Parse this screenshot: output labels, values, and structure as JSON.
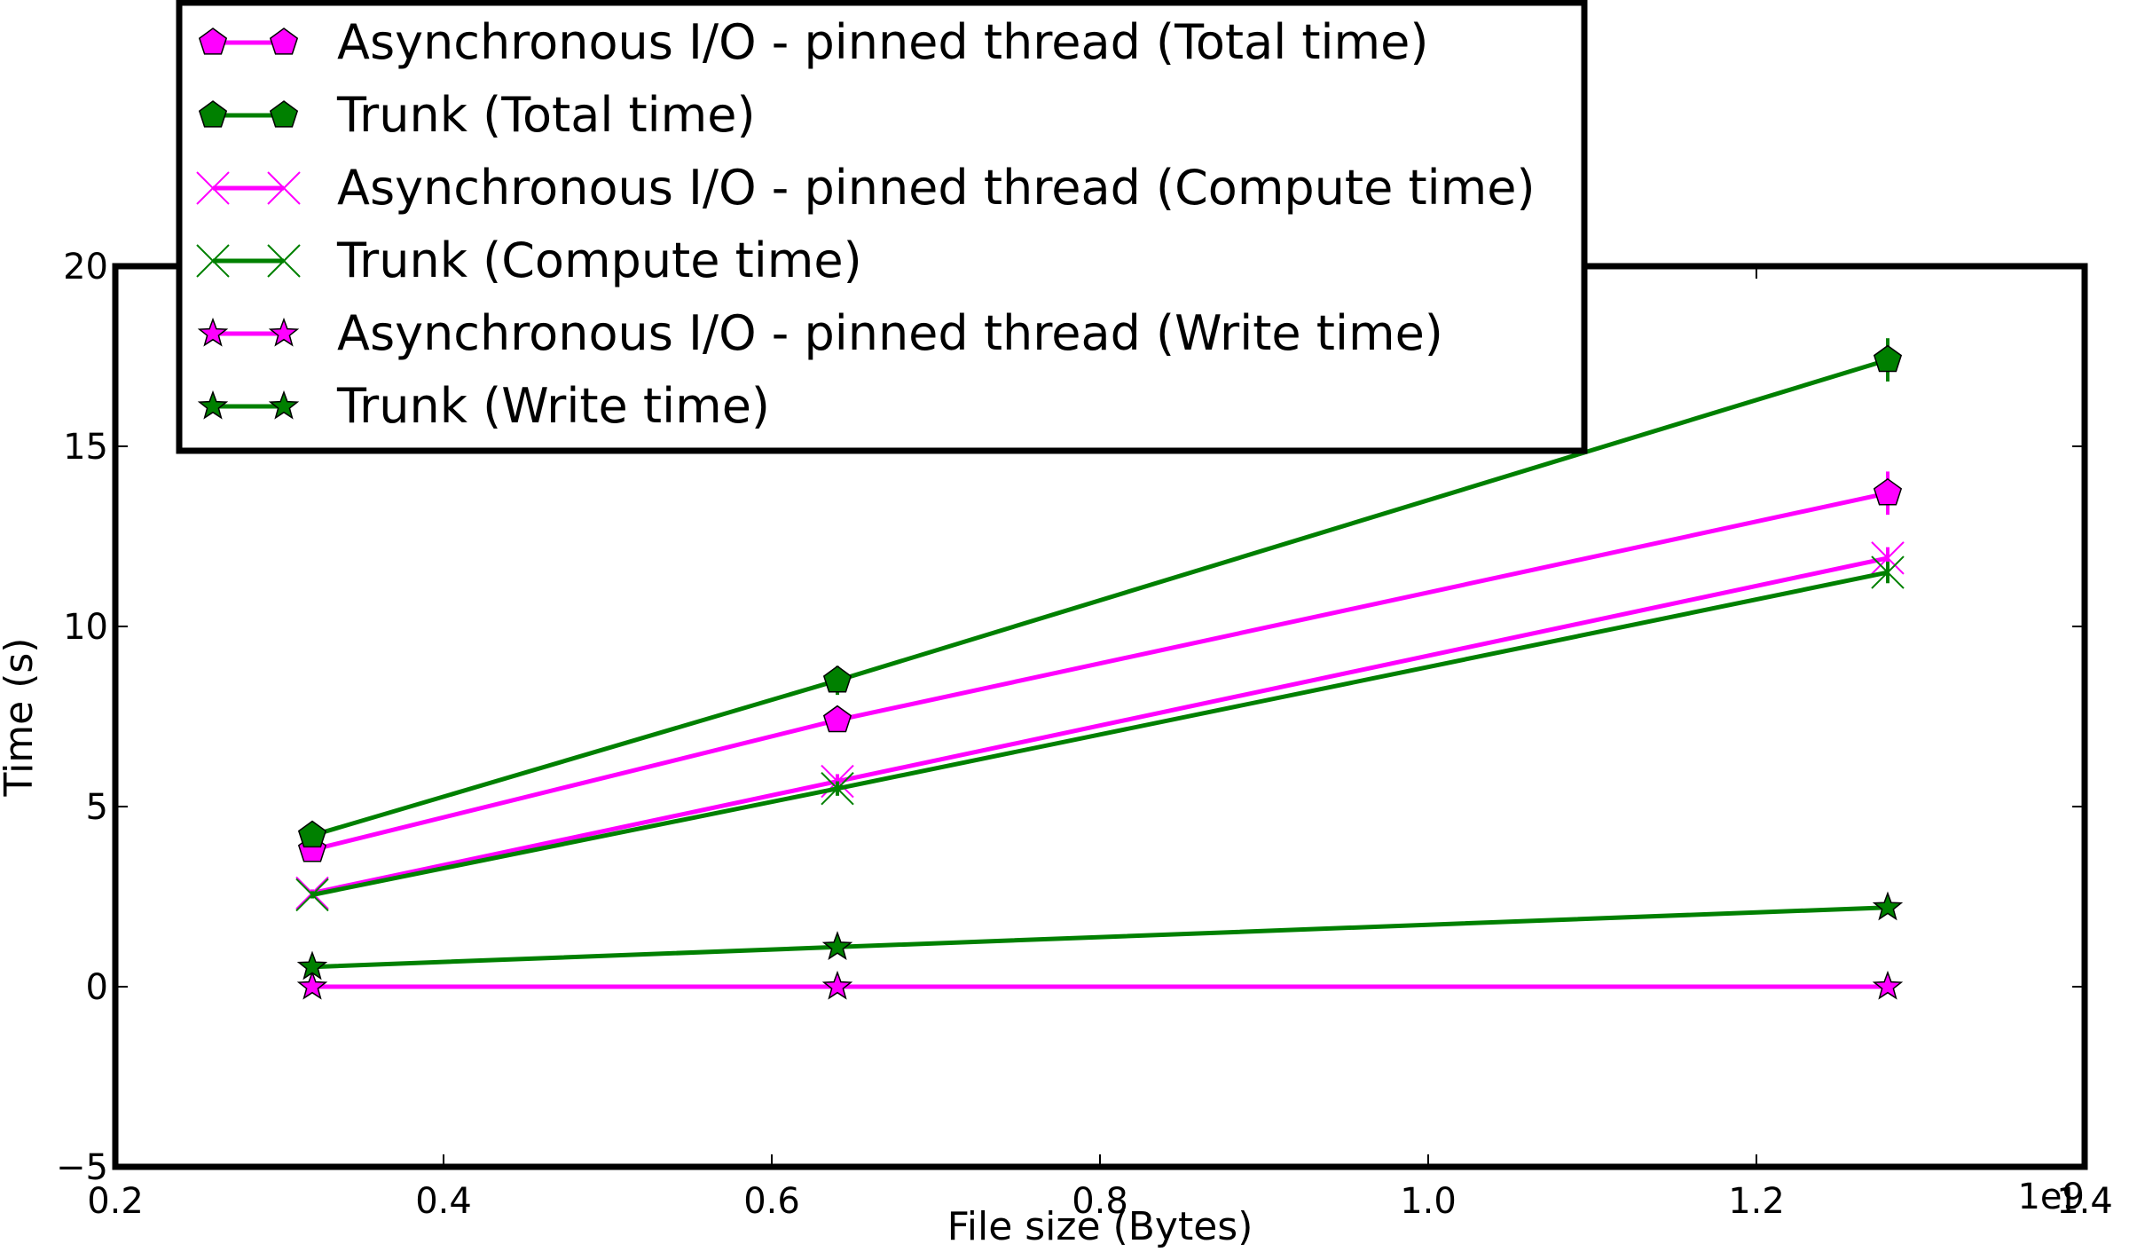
{
  "chart_data": {
    "type": "line",
    "xlabel": "File size (Bytes)",
    "ylabel": "Time (s)",
    "x_offset_label": "1e9",
    "xlim": [
      0.2,
      1.4
    ],
    "ylim": [
      -5,
      20
    ],
    "x_scale": 1000000000,
    "xticks": [
      0.2,
      0.4,
      0.6,
      0.8,
      1.0,
      1.2,
      1.4
    ],
    "xtick_labels": [
      "0.2",
      "0.4",
      "0.6",
      "0.8",
      "1.0",
      "1.2",
      "1.4"
    ],
    "yticks": [
      -5,
      0,
      5,
      10,
      15,
      20
    ],
    "ytick_labels": [
      "−5",
      "0",
      "5",
      "10",
      "15",
      "20"
    ],
    "grid": false,
    "legend_position": "upper-left",
    "x": [
      320000000,
      640000000,
      1280000000
    ],
    "series": [
      {
        "name": "Asynchronous I/O - pinned thread (Total time)",
        "color": "#ff00ff",
        "marker": "pentagon",
        "values": [
          3.8,
          7.4,
          13.7
        ],
        "errors": [
          0.1,
          0.2,
          0.6
        ]
      },
      {
        "name": "Trunk (Total time)",
        "color": "#008000",
        "marker": "pentagon",
        "values": [
          4.2,
          8.5,
          17.4
        ],
        "errors": [
          0.1,
          0.4,
          0.6
        ]
      },
      {
        "name": "Asynchronous I/O - pinned thread (Compute time)",
        "color": "#ff00ff",
        "marker": "x",
        "values": [
          2.6,
          5.7,
          11.9
        ],
        "errors": [
          0.1,
          0.2,
          0.3
        ]
      },
      {
        "name": "Trunk (Compute time)",
        "color": "#008000",
        "marker": "x",
        "values": [
          2.55,
          5.5,
          11.5
        ],
        "errors": [
          0.1,
          0.2,
          0.3
        ]
      },
      {
        "name": "Asynchronous I/O - pinned thread (Write time)",
        "color": "#ff00ff",
        "marker": "star",
        "values": [
          0.0,
          0.0,
          0.0
        ],
        "errors": [
          0.0,
          0.0,
          0.0
        ]
      },
      {
        "name": "Trunk (Write time)",
        "color": "#008000",
        "marker": "star",
        "values": [
          0.55,
          1.1,
          2.2
        ],
        "errors": [
          0.05,
          0.05,
          0.1
        ]
      }
    ]
  }
}
